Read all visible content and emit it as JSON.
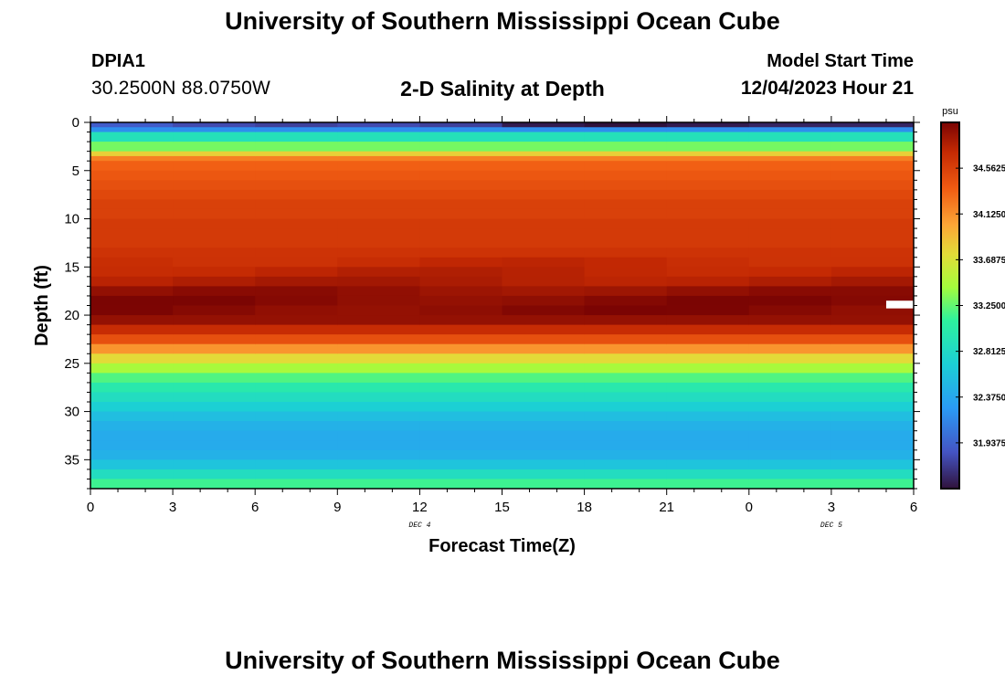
{
  "header": {
    "title": "University of Southern Mississippi Ocean Cube",
    "station_id": "DPIA1",
    "coordinates": "30.2500N  88.0750W",
    "subtitle": "2-D Salinity at Depth",
    "model_start_label": "Model Start Time",
    "model_start_value": "12/04/2023 Hour 21"
  },
  "footer": {
    "title": "University of Southern Mississippi Ocean Cube"
  },
  "chart_data": {
    "type": "heatmap",
    "title": "2-D Salinity at Depth",
    "xlabel": "Forecast Time(Z)",
    "ylabel": "Depth (ft)",
    "x_ticks": [
      "0",
      "3",
      "6",
      "9",
      "12",
      "15",
      "18",
      "21",
      "0",
      "3",
      "6"
    ],
    "x_range_hours": [
      0,
      30
    ],
    "x_day_labels": [
      {
        "label": "DEC 4",
        "at_hour": 12
      },
      {
        "label": "DEC 5",
        "at_hour": 27
      }
    ],
    "y_ticks": [
      0,
      5,
      10,
      15,
      20,
      25,
      30,
      35
    ],
    "y_range_ft": [
      0,
      38
    ],
    "y_inverted": true,
    "colorbar": {
      "unit": "psu",
      "range": [
        31.5,
        35.0
      ],
      "ticks": [
        "34.5625",
        "34.1250",
        "33.6875",
        "33.2500",
        "32.8125",
        "32.3750",
        "31.9375"
      ],
      "tick_values": [
        34.5625,
        34.125,
        33.6875,
        33.25,
        32.8125,
        32.375,
        31.9375
      ]
    },
    "depth_bins_ft": [
      0,
      0.5,
      1,
      2,
      3,
      3.5,
      4,
      5,
      6,
      7,
      8,
      9,
      10,
      11,
      12,
      13,
      14,
      15,
      16,
      17,
      18,
      19,
      20,
      21,
      22,
      23,
      24,
      25,
      26,
      27,
      28,
      29,
      30,
      31,
      32,
      33,
      34,
      35,
      36,
      37
    ],
    "salinity_by_depth_psu": [
      31.6,
      32.2,
      32.9,
      33.3,
      33.8,
      34.2,
      34.35,
      34.4,
      34.45,
      34.5,
      34.55,
      34.55,
      34.6,
      34.6,
      34.6,
      34.65,
      34.7,
      34.75,
      34.8,
      34.9,
      34.95,
      34.95,
      34.9,
      34.7,
      34.45,
      34.1,
      33.75,
      33.45,
      33.2,
      33.0,
      32.85,
      32.7,
      32.55,
      32.45,
      32.4,
      32.4,
      32.45,
      32.6,
      32.85,
      33.15
    ],
    "surface_variation_psu": [
      31.9,
      31.8,
      31.75,
      31.8,
      31.75,
      31.55,
      31.5,
      31.55,
      31.6,
      31.6,
      31.65
    ],
    "missing_cells": [
      {
        "time_hours": [
          29,
          30
        ],
        "depth_ft": [
          18.5,
          19.3
        ]
      }
    ]
  }
}
